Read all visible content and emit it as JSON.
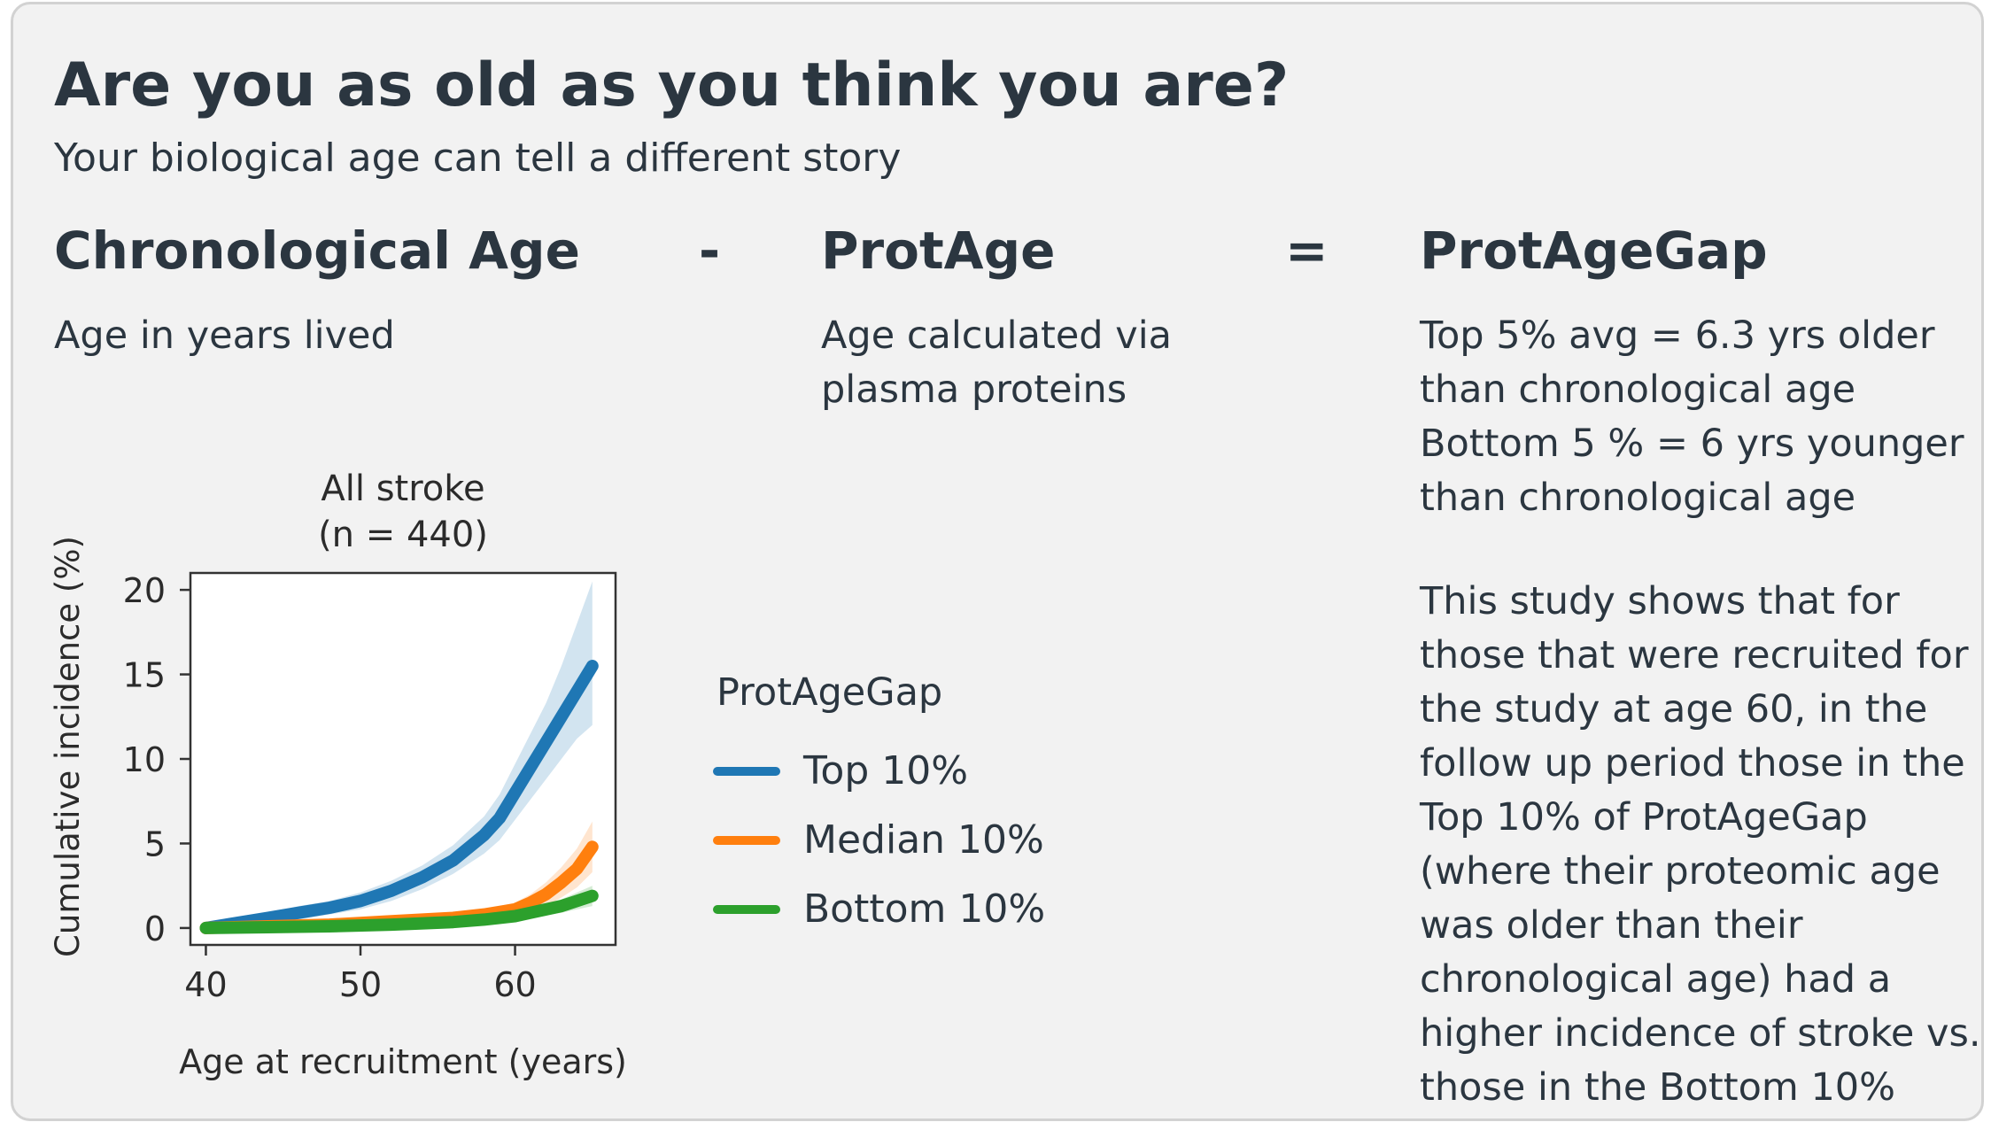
{
  "header": {
    "title": "Are you as old as you think you are?",
    "subtitle": "Your biological age can tell a different story"
  },
  "equation": {
    "term1": {
      "label": "Chronological Age",
      "desc": "Age in years lived"
    },
    "minus": "-",
    "term2": {
      "label": "ProtAge",
      "desc_lines": [
        "Age calculated via",
        "plasma proteins"
      ]
    },
    "equals": "=",
    "term3": {
      "label": "ProtAgeGap",
      "desc_lines": [
        "Top 5% avg = 6.3 yrs older",
        "than chronological age",
        "Bottom 5 % = 6 yrs younger",
        "than chronological age"
      ]
    }
  },
  "study_note_lines": [
    "This study shows that for",
    "those that were recruited for",
    "the study at age 60, in the",
    "follow up period those in the",
    "Top 10% of ProtAgeGap",
    "(where their proteomic age",
    "was older than their",
    "chronological age) had a",
    "higher incidence of stroke vs.",
    "those in the Bottom 10%"
  ],
  "legend": {
    "title": "ProtAgeGap",
    "items": [
      {
        "label": "Top 10%",
        "color": "#1f77b4"
      },
      {
        "label": "Median 10%",
        "color": "#ff7f0e"
      },
      {
        "label": "Bottom 10%",
        "color": "#2ca02c"
      }
    ]
  },
  "chart_data": {
    "type": "line",
    "title_lines": [
      "All stroke",
      "(n = 440)"
    ],
    "xlabel": "Age at recruitment (years)",
    "ylabel": "Cumulative incidence (%)",
    "xlim": [
      39,
      66.5
    ],
    "ylim": [
      -1,
      21
    ],
    "xticks": [
      40,
      50,
      60
    ],
    "yticks": [
      0,
      5,
      10,
      15,
      20
    ],
    "series": [
      {
        "name": "Top 10%",
        "color": "#1f77b4",
        "x": [
          40,
          42,
          44,
          46,
          48,
          50,
          52,
          54,
          56,
          58,
          59,
          60,
          61,
          62,
          63,
          64,
          65
        ],
        "y": [
          0,
          0.3,
          0.6,
          0.9,
          1.2,
          1.6,
          2.2,
          3.0,
          4.0,
          5.5,
          6.5,
          8.0,
          9.5,
          11.0,
          12.5,
          14.0,
          15.5
        ],
        "band_low": [
          0,
          0.1,
          0.3,
          0.5,
          0.8,
          1.1,
          1.6,
          2.3,
          3.2,
          4.4,
          5.2,
          6.4,
          7.6,
          8.8,
          10.0,
          11.2,
          12.0
        ],
        "band_high": [
          0,
          0.5,
          0.9,
          1.3,
          1.6,
          2.1,
          2.8,
          3.7,
          4.9,
          6.6,
          7.9,
          9.7,
          11.5,
          13.3,
          15.5,
          18.0,
          20.5
        ]
      },
      {
        "name": "Median 10%",
        "color": "#ff7f0e",
        "x": [
          40,
          44,
          48,
          52,
          56,
          58,
          60,
          61,
          62,
          63,
          64,
          65
        ],
        "y": [
          0,
          0.1,
          0.2,
          0.4,
          0.6,
          0.8,
          1.1,
          1.5,
          2.0,
          2.7,
          3.5,
          4.8
        ],
        "band_low": [
          0,
          0,
          0.1,
          0.2,
          0.4,
          0.5,
          0.7,
          1.0,
          1.3,
          1.8,
          2.4,
          3.3
        ],
        "band_high": [
          0,
          0.2,
          0.3,
          0.6,
          0.8,
          1.1,
          1.5,
          2.0,
          2.7,
          3.6,
          4.7,
          6.3
        ]
      },
      {
        "name": "Bottom 10%",
        "color": "#2ca02c",
        "x": [
          40,
          44,
          48,
          52,
          56,
          58,
          60,
          61,
          62,
          63,
          64,
          65
        ],
        "y": [
          0,
          0.05,
          0.1,
          0.2,
          0.35,
          0.5,
          0.7,
          0.9,
          1.1,
          1.3,
          1.6,
          1.9
        ],
        "band_low": [
          0,
          0,
          0.05,
          0.1,
          0.2,
          0.3,
          0.45,
          0.6,
          0.75,
          0.9,
          1.1,
          1.3
        ],
        "band_high": [
          0,
          0.1,
          0.15,
          0.3,
          0.5,
          0.7,
          0.95,
          1.2,
          1.45,
          1.7,
          2.1,
          2.5
        ]
      }
    ],
    "legend_position": "right",
    "grid": false
  }
}
